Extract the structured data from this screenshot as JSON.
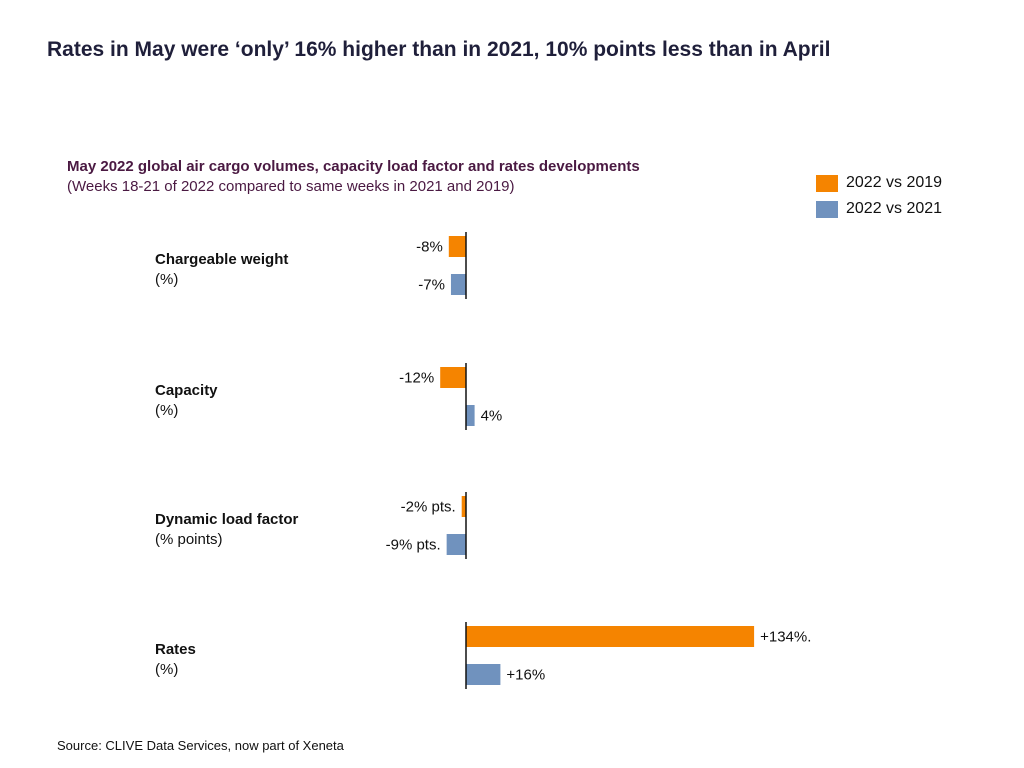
{
  "headline": "Rates in May were ‘only’ 16% higher than in 2021, 10% points less than in April",
  "source": "Source: CLIVE Data Services, now part of Xeneta",
  "colors": {
    "s2019": "#f58400",
    "s2021": "#7092be"
  },
  "chart_data": {
    "type": "bar",
    "orientation": "horizontal",
    "title": "May 2022 global air cargo volumes, capacity load factor and rates developments",
    "subtitle": "(Weeks 18-21 of 2022 compared to same weeks in 2021 and 2019)",
    "legend_position": "top-right",
    "categories": [
      {
        "name": "Chargeable weight",
        "unit": "(%)"
      },
      {
        "name": "Capacity",
        "unit": "(%)"
      },
      {
        "name": "Dynamic load factor",
        "unit": "(% points)"
      },
      {
        "name": "Rates",
        "unit": "(%)"
      }
    ],
    "series": [
      {
        "name": "2022 vs 2019",
        "values": [
          -8,
          -12,
          -2,
          134
        ],
        "labels": [
          "-8%",
          "-12%",
          "-2% pts.",
          "+134%."
        ]
      },
      {
        "name": "2022 vs 2021",
        "values": [
          -7,
          4,
          -9,
          16
        ],
        "labels": [
          "-7%",
          "4%",
          "-9% pts.",
          "+16%"
        ]
      }
    ]
  }
}
